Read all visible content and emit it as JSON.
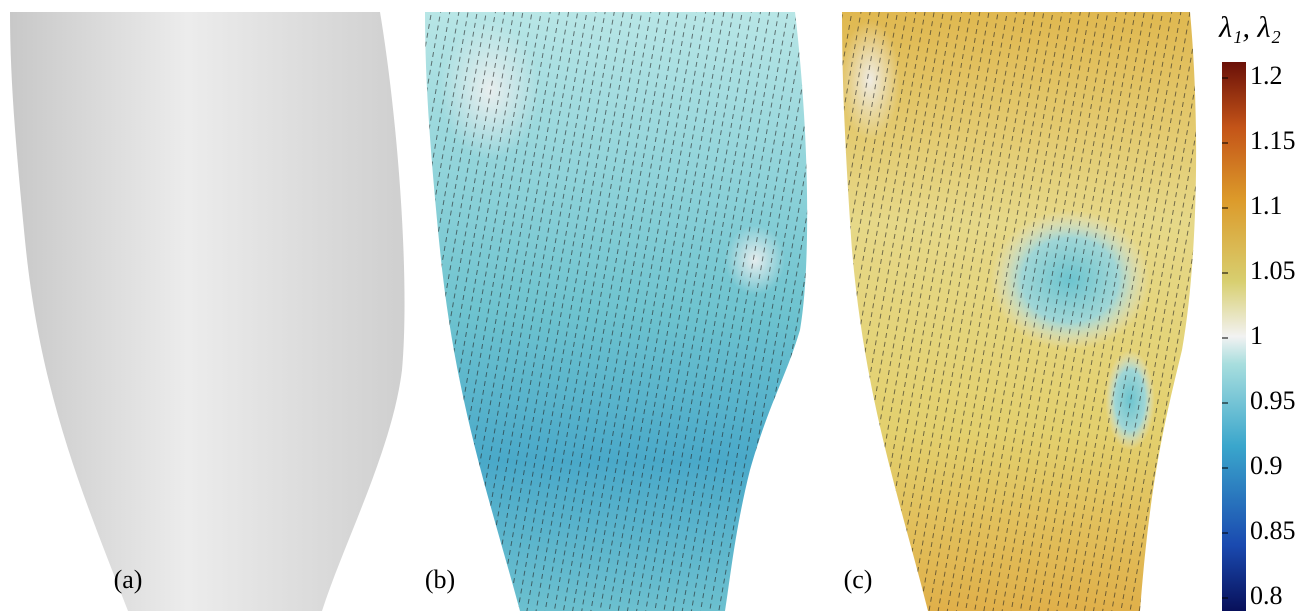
{
  "panels": [
    {
      "label": "(a)"
    },
    {
      "label": "(b)"
    },
    {
      "label": "(c)"
    }
  ],
  "colorbar": {
    "title": "λ₁, λ₂",
    "lim": [
      0.8,
      1.2
    ],
    "ticks": [
      0.8,
      0.85,
      0.9,
      0.95,
      1,
      1.05,
      1.1,
      1.15,
      1.2
    ]
  }
}
